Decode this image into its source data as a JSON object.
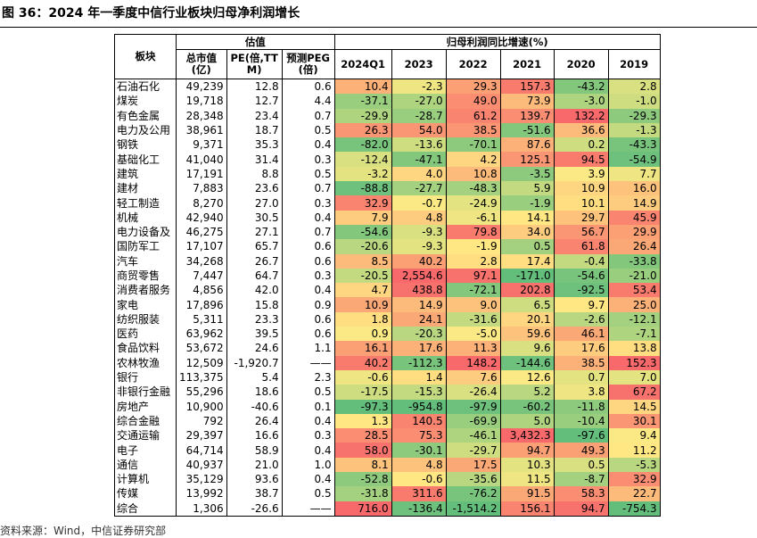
{
  "title": "图 36：2024 年一季度中信行业板块归母净利润增长",
  "table": {
    "groups": [
      "估值",
      "归母利润同比增速(%)"
    ],
    "columns": [
      "板块",
      "总市值(亿)",
      "PE(倍,TTM)",
      "预测PEG(倍)",
      "2024Q1",
      "2023",
      "2022",
      "2021",
      "2020",
      "2019"
    ],
    "rows": [
      [
        "石油石化",
        "49,239",
        "12.8",
        "0.6",
        "10.4",
        "-2.3",
        "29.3",
        "157.3",
        "-43.2",
        "2.8"
      ],
      [
        "煤炭",
        "19,718",
        "12.7",
        "4.4",
        "-37.1",
        "-27.0",
        "49.0",
        "73.9",
        "-3.0",
        "-1.0"
      ],
      [
        "有色金属",
        "28,348",
        "23.4",
        "0.7",
        "-29.9",
        "-28.7",
        "61.2",
        "139.7",
        "132.2",
        "-29.3"
      ],
      [
        "电力及公用",
        "38,961",
        "18.7",
        "0.5",
        "26.3",
        "54.0",
        "38.5",
        "-51.6",
        "36.6",
        "-1.3"
      ],
      [
        "钢铁",
        "9,371",
        "35.3",
        "0.4",
        "-82.0",
        "-13.6",
        "-70.1",
        "87.6",
        "0.2",
        "-43.3"
      ],
      [
        "基础化工",
        "41,040",
        "31.4",
        "0.3",
        "-12.4",
        "-47.1",
        "4.2",
        "125.1",
        "94.5",
        "-54.9"
      ],
      [
        "建筑",
        "17,191",
        "8.8",
        "0.5",
        "-3.2",
        "4.0",
        "10.8",
        "-3.5",
        "3.9",
        "7.7"
      ],
      [
        "建材",
        "7,883",
        "23.6",
        "0.7",
        "-88.8",
        "-27.7",
        "-48.3",
        "5.9",
        "10.9",
        "16.0"
      ],
      [
        "轻工制造",
        "8,270",
        "27.0",
        "0.3",
        "32.9",
        "-0.7",
        "-24.9",
        "-1.9",
        "10.1",
        "14.9"
      ],
      [
        "机械",
        "42,940",
        "30.5",
        "0.4",
        "7.9",
        "4.8",
        "-6.1",
        "14.1",
        "29.7",
        "45.9"
      ],
      [
        "电力设备及",
        "46,275",
        "27.1",
        "0.7",
        "-54.6",
        "-9.3",
        "79.8",
        "34.0",
        "56.7",
        "29.9"
      ],
      [
        "国防军工",
        "17,107",
        "65.7",
        "0.6",
        "-20.6",
        "-9.3",
        "-1.9",
        "0.5",
        "61.8",
        "26.4"
      ],
      [
        "汽车",
        "34,268",
        "26.7",
        "0.6",
        "8.5",
        "40.2",
        "2.8",
        "17.4",
        "-0.4",
        "-33.8"
      ],
      [
        "商贸零售",
        "7,447",
        "64.7",
        "0.3",
        "-20.5",
        "2,554.6",
        "97.1",
        "-171.0",
        "-54.6",
        "-21.0"
      ],
      [
        "消费者服务",
        "4,856",
        "42.0",
        "0.4",
        "4.7",
        "438.8",
        "-72.1",
        "202.8",
        "-92.5",
        "53.4"
      ],
      [
        "家电",
        "17,896",
        "15.8",
        "0.9",
        "10.9",
        "14.9",
        "9.0",
        "6.5",
        "9.7",
        "25.0"
      ],
      [
        "纺织服装",
        "5,311",
        "23.3",
        "0.6",
        "1.8",
        "24.1",
        "-31.6",
        "20.1",
        "-2.6",
        "-12.1"
      ],
      [
        "医药",
        "63,962",
        "39.5",
        "0.6",
        "0.9",
        "-20.3",
        "-5.0",
        "59.6",
        "46.1",
        "-7.1"
      ],
      [
        "食品饮料",
        "53,672",
        "24.6",
        "1.1",
        "16.1",
        "17.6",
        "11.3",
        "9.6",
        "17.6",
        "13.8"
      ],
      [
        "农林牧渔",
        "12,509",
        "-1,920.7",
        "——",
        "40.2",
        "-112.3",
        "148.2",
        "-144.6",
        "38.5",
        "152.3"
      ],
      [
        "银行",
        "113,375",
        "5.4",
        "2.3",
        "-0.6",
        "1.4",
        "7.6",
        "12.6",
        "0.7",
        "7.0"
      ],
      [
        "非银行金融",
        "55,296",
        "18.6",
        "0.5",
        "-17.5",
        "-15.3",
        "-26.4",
        "5.2",
        "3.8",
        "67.2"
      ],
      [
        "房地产",
        "10,900",
        "-40.6",
        "0.1",
        "-97.3",
        "-954.8",
        "-97.9",
        "-60.2",
        "-11.8",
        "14.5"
      ],
      [
        "综合金融",
        "792",
        "26.4",
        "0.4",
        "1.3",
        "140.5",
        "-69.9",
        "5.0",
        "-10.4",
        "30.1"
      ],
      [
        "交通运输",
        "29,397",
        "16.6",
        "0.3",
        "28.5",
        "75.3",
        "-46.1",
        "3,432.3",
        "-97.6",
        "9.4"
      ],
      [
        "电子",
        "64,714",
        "58.9",
        "0.4",
        "58.0",
        "-30.1",
        "-29.7",
        "94.7",
        "49.3",
        "11.2"
      ],
      [
        "通信",
        "40,937",
        "21.0",
        "1.0",
        "8.1",
        "4.8",
        "17.5",
        "10.3",
        "0.5",
        "-5.3"
      ],
      [
        "计算机",
        "35,129",
        "93.6",
        "0.4",
        "-52.8",
        "-0.6",
        "-35.6",
        "11.5",
        "-8.7",
        "32.9"
      ],
      [
        "传媒",
        "13,992",
        "38.7",
        "0.5",
        "-31.8",
        "311.6",
        "-76.2",
        "91.5",
        "58.3",
        "22.7"
      ],
      [
        "综合",
        "1,306",
        "-26.6",
        "——",
        "716.0",
        "-136.4",
        "-1,514.2",
        "156.1",
        "94.7",
        "-754.3"
      ]
    ]
  },
  "source": "资料来源：Wind，中信证券研究部"
}
